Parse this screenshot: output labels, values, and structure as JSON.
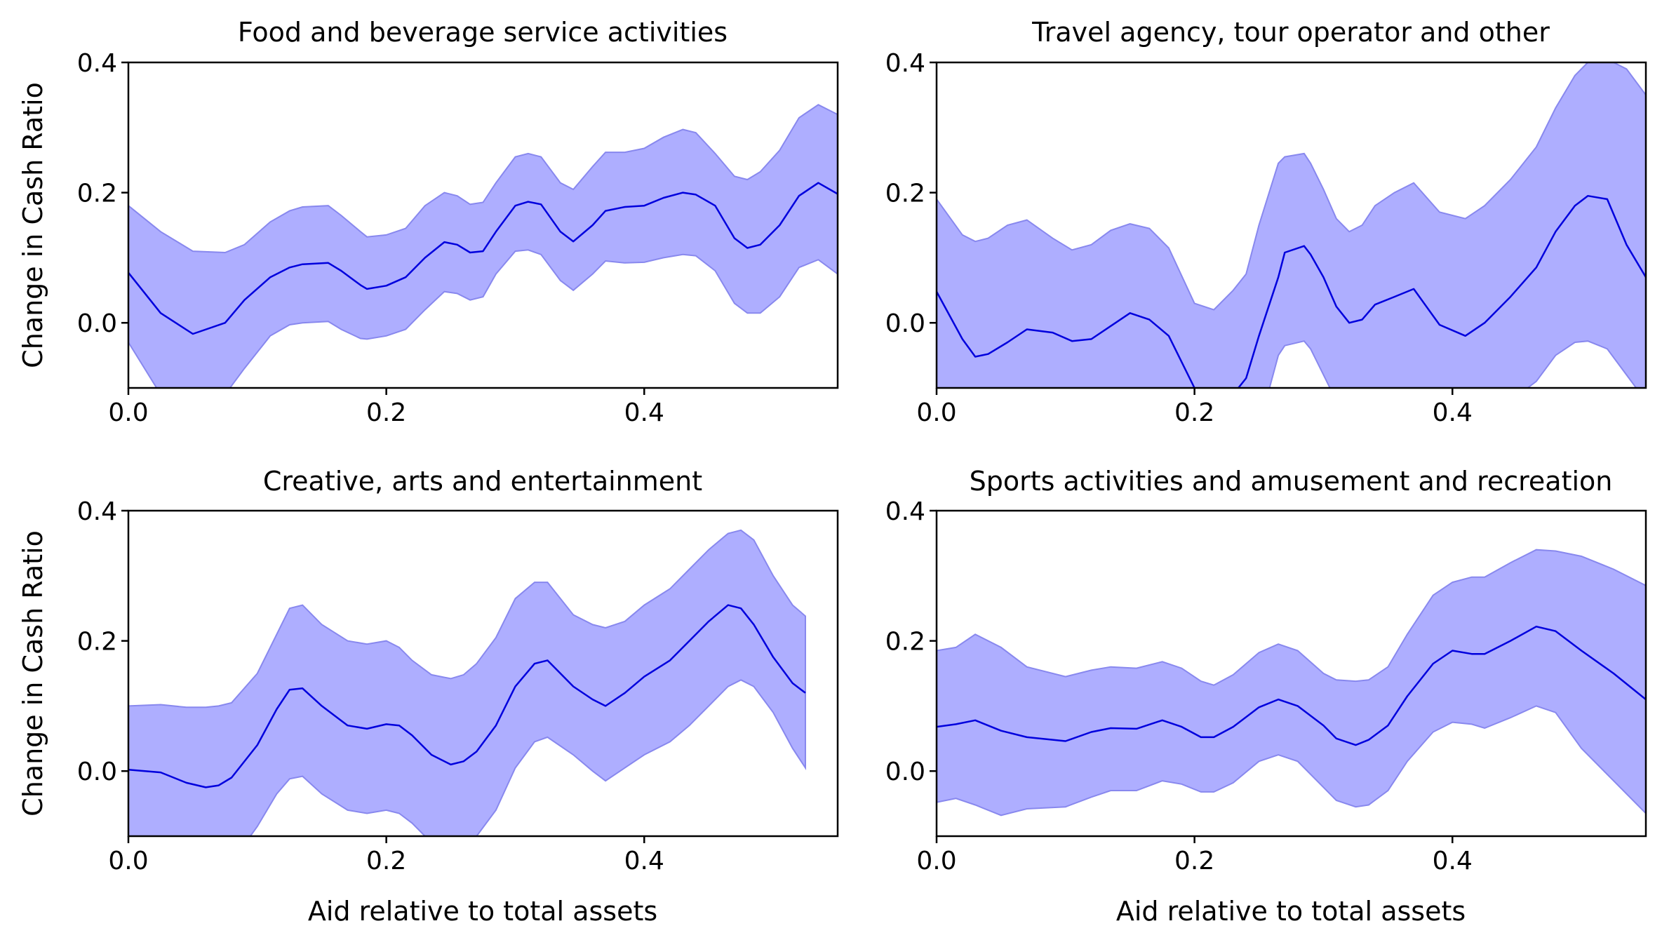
{
  "figure": {
    "ylabel": "Change in Cash Ratio",
    "xlabel": "Aid relative to total assets"
  },
  "chart_data": [
    {
      "type": "line",
      "title": "Food and beverage service activities",
      "xlabel": "",
      "ylabel": "Change in Cash Ratio",
      "xlim": [
        0.0,
        0.55
      ],
      "ylim": [
        -0.1,
        0.4
      ],
      "xticks": [
        "0.0",
        "0.2",
        "0.4"
      ],
      "yticks": [
        "0.0",
        "0.2",
        "0.4"
      ],
      "grid": false,
      "colors": {
        "line": "#0000dd",
        "band": "#aaaaff",
        "band_edge": "#8888ee"
      },
      "series": [
        {
          "x": [
            0.0,
            0.025,
            0.05,
            0.075,
            0.09,
            0.11,
            0.125,
            0.135,
            0.155,
            0.165,
            0.18,
            0.185,
            0.2,
            0.215,
            0.23,
            0.245,
            0.255,
            0.265,
            0.275,
            0.285,
            0.3,
            0.31,
            0.32,
            0.335,
            0.345,
            0.36,
            0.37,
            0.385,
            0.4,
            0.415,
            0.43,
            0.44,
            0.455,
            0.47,
            0.48,
            0.49,
            0.505,
            0.52,
            0.535,
            0.55
          ],
          "y": [
            0.077,
            0.015,
            -0.017,
            0.0,
            0.035,
            0.07,
            0.085,
            0.09,
            0.092,
            0.08,
            0.058,
            0.052,
            0.057,
            0.07,
            0.1,
            0.124,
            0.12,
            0.108,
            0.11,
            0.14,
            0.18,
            0.186,
            0.182,
            0.14,
            0.125,
            0.15,
            0.172,
            0.178,
            0.18,
            0.192,
            0.2,
            0.197,
            0.18,
            0.13,
            0.115,
            0.12,
            0.15,
            0.195,
            0.215,
            0.198
          ],
          "lower": [
            -0.03,
            -0.11,
            -0.13,
            -0.11,
            -0.07,
            -0.02,
            -0.003,
            0.0,
            0.002,
            -0.01,
            -0.024,
            -0.025,
            -0.02,
            -0.01,
            0.02,
            0.048,
            0.045,
            0.035,
            0.04,
            0.075,
            0.11,
            0.112,
            0.105,
            0.065,
            0.05,
            0.075,
            0.095,
            0.092,
            0.093,
            0.1,
            0.105,
            0.103,
            0.08,
            0.03,
            0.015,
            0.015,
            0.04,
            0.085,
            0.097,
            0.075
          ],
          "upper": [
            0.18,
            0.14,
            0.11,
            0.108,
            0.12,
            0.155,
            0.172,
            0.178,
            0.18,
            0.165,
            0.14,
            0.132,
            0.135,
            0.145,
            0.18,
            0.2,
            0.195,
            0.182,
            0.185,
            0.215,
            0.255,
            0.26,
            0.255,
            0.215,
            0.205,
            0.24,
            0.262,
            0.262,
            0.268,
            0.285,
            0.297,
            0.292,
            0.26,
            0.225,
            0.22,
            0.232,
            0.265,
            0.315,
            0.335,
            0.32
          ]
        }
      ]
    },
    {
      "type": "line",
      "title": "Travel agency, tour operator and other",
      "xlabel": "",
      "ylabel": "",
      "xlim": [
        0.0,
        0.55
      ],
      "ylim": [
        -0.1,
        0.4
      ],
      "xticks": [
        "0.0",
        "0.2",
        "0.4"
      ],
      "yticks": [
        "0.0",
        "0.2",
        "0.4"
      ],
      "grid": false,
      "colors": {
        "line": "#0000dd",
        "band": "#aaaaff",
        "band_edge": "#8888ee"
      },
      "series": [
        {
          "x": [
            0.0,
            0.02,
            0.03,
            0.04,
            0.055,
            0.07,
            0.09,
            0.105,
            0.12,
            0.135,
            0.15,
            0.165,
            0.18,
            0.2,
            0.215,
            0.23,
            0.24,
            0.25,
            0.265,
            0.27,
            0.285,
            0.29,
            0.3,
            0.31,
            0.32,
            0.33,
            0.34,
            0.355,
            0.37,
            0.39,
            0.41,
            0.425,
            0.445,
            0.465,
            0.48,
            0.495,
            0.505,
            0.52,
            0.535,
            0.55
          ],
          "y": [
            0.048,
            -0.025,
            -0.052,
            -0.048,
            -0.03,
            -0.01,
            -0.015,
            -0.028,
            -0.025,
            -0.005,
            0.015,
            0.005,
            -0.02,
            -0.1,
            -0.14,
            -0.11,
            -0.085,
            -0.02,
            0.07,
            0.108,
            0.118,
            0.105,
            0.07,
            0.025,
            0.0,
            0.005,
            0.028,
            0.04,
            0.052,
            -0.003,
            -0.02,
            0.0,
            0.04,
            0.085,
            0.14,
            0.18,
            0.195,
            0.19,
            0.12,
            0.07
          ],
          "lower": [
            -0.15,
            -0.2,
            -0.22,
            -0.22,
            -0.2,
            -0.18,
            -0.18,
            -0.19,
            -0.19,
            -0.17,
            -0.16,
            -0.17,
            -0.19,
            -0.25,
            -0.28,
            -0.25,
            -0.22,
            -0.16,
            -0.05,
            -0.035,
            -0.028,
            -0.04,
            -0.08,
            -0.12,
            -0.15,
            -0.145,
            -0.12,
            -0.11,
            -0.1,
            -0.15,
            -0.17,
            -0.15,
            -0.12,
            -0.09,
            -0.05,
            -0.03,
            -0.028,
            -0.04,
            -0.08,
            -0.12
          ],
          "upper": [
            0.19,
            0.135,
            0.125,
            0.13,
            0.15,
            0.158,
            0.13,
            0.112,
            0.12,
            0.142,
            0.152,
            0.145,
            0.115,
            0.03,
            0.02,
            0.05,
            0.075,
            0.15,
            0.245,
            0.255,
            0.26,
            0.245,
            0.205,
            0.16,
            0.14,
            0.15,
            0.18,
            0.2,
            0.215,
            0.17,
            0.16,
            0.18,
            0.22,
            0.27,
            0.33,
            0.38,
            0.4,
            0.405,
            0.39,
            0.35
          ]
        }
      ]
    },
    {
      "type": "line",
      "title": "Creative, arts and entertainment",
      "xlabel": "Aid relative to total assets",
      "ylabel": "Change in Cash Ratio",
      "xlim": [
        0.0,
        0.55
      ],
      "ylim": [
        -0.1,
        0.4
      ],
      "xticks": [
        "0.0",
        "0.2",
        "0.4"
      ],
      "yticks": [
        "0.0",
        "0.2",
        "0.4"
      ],
      "grid": false,
      "colors": {
        "line": "#0000dd",
        "band": "#aaaaff",
        "band_edge": "#8888ee"
      },
      "series": [
        {
          "x": [
            0.0,
            0.025,
            0.045,
            0.06,
            0.07,
            0.08,
            0.1,
            0.115,
            0.125,
            0.135,
            0.15,
            0.17,
            0.185,
            0.2,
            0.21,
            0.22,
            0.235,
            0.25,
            0.26,
            0.27,
            0.285,
            0.3,
            0.315,
            0.325,
            0.345,
            0.36,
            0.37,
            0.385,
            0.4,
            0.42,
            0.435,
            0.45,
            0.465,
            0.475,
            0.485,
            0.5,
            0.515,
            0.525
          ],
          "y": [
            0.002,
            -0.002,
            -0.018,
            -0.025,
            -0.022,
            -0.01,
            0.04,
            0.095,
            0.125,
            0.127,
            0.1,
            0.07,
            0.065,
            0.072,
            0.07,
            0.055,
            0.025,
            0.01,
            0.015,
            0.03,
            0.07,
            0.13,
            0.165,
            0.17,
            0.13,
            0.11,
            0.1,
            0.12,
            0.145,
            0.17,
            0.2,
            0.23,
            0.255,
            0.25,
            0.225,
            0.175,
            0.135,
            0.12
          ],
          "lower": [
            -0.1,
            -0.12,
            -0.14,
            -0.15,
            -0.15,
            -0.14,
            -0.085,
            -0.035,
            -0.012,
            -0.008,
            -0.035,
            -0.06,
            -0.065,
            -0.06,
            -0.065,
            -0.08,
            -0.11,
            -0.125,
            -0.12,
            -0.1,
            -0.06,
            0.005,
            0.045,
            0.052,
            0.025,
            0.0,
            -0.015,
            0.005,
            0.025,
            0.045,
            0.07,
            0.1,
            0.13,
            0.14,
            0.13,
            0.09,
            0.035,
            0.005
          ],
          "upper": [
            0.1,
            0.102,
            0.098,
            0.098,
            0.1,
            0.105,
            0.15,
            0.21,
            0.25,
            0.255,
            0.225,
            0.2,
            0.195,
            0.2,
            0.19,
            0.17,
            0.148,
            0.142,
            0.148,
            0.165,
            0.205,
            0.265,
            0.29,
            0.29,
            0.24,
            0.225,
            0.22,
            0.23,
            0.255,
            0.28,
            0.31,
            0.34,
            0.365,
            0.37,
            0.355,
            0.3,
            0.255,
            0.238
          ]
        }
      ]
    },
    {
      "type": "line",
      "title": "Sports activities and amusement and recreation",
      "xlabel": "Aid relative to total assets",
      "ylabel": "",
      "xlim": [
        0.0,
        0.55
      ],
      "ylim": [
        -0.1,
        0.4
      ],
      "xticks": [
        "0.0",
        "0.2",
        "0.4"
      ],
      "yticks": [
        "0.0",
        "0.2",
        "0.4"
      ],
      "grid": false,
      "colors": {
        "line": "#0000dd",
        "band": "#aaaaff",
        "band_edge": "#8888ee"
      },
      "series": [
        {
          "x": [
            0.0,
            0.015,
            0.03,
            0.05,
            0.07,
            0.1,
            0.12,
            0.135,
            0.155,
            0.175,
            0.19,
            0.205,
            0.215,
            0.23,
            0.25,
            0.265,
            0.28,
            0.3,
            0.31,
            0.325,
            0.335,
            0.35,
            0.365,
            0.385,
            0.4,
            0.415,
            0.425,
            0.445,
            0.465,
            0.48,
            0.5,
            0.525,
            0.55
          ],
          "y": [
            0.068,
            0.072,
            0.078,
            0.062,
            0.052,
            0.046,
            0.06,
            0.066,
            0.065,
            0.078,
            0.068,
            0.052,
            0.052,
            0.068,
            0.098,
            0.11,
            0.1,
            0.07,
            0.05,
            0.04,
            0.048,
            0.07,
            0.115,
            0.165,
            0.185,
            0.18,
            0.18,
            0.2,
            0.222,
            0.215,
            0.185,
            0.15,
            0.11
          ],
          "lower": [
            -0.048,
            -0.042,
            -0.052,
            -0.068,
            -0.058,
            -0.055,
            -0.04,
            -0.03,
            -0.03,
            -0.015,
            -0.02,
            -0.032,
            -0.032,
            -0.018,
            0.015,
            0.025,
            0.015,
            -0.025,
            -0.045,
            -0.055,
            -0.052,
            -0.03,
            0.015,
            0.06,
            0.075,
            0.072,
            0.066,
            0.082,
            0.1,
            0.09,
            0.035,
            -0.015,
            -0.065
          ],
          "upper": [
            0.185,
            0.19,
            0.21,
            0.19,
            0.16,
            0.145,
            0.155,
            0.16,
            0.158,
            0.168,
            0.158,
            0.138,
            0.132,
            0.148,
            0.182,
            0.195,
            0.185,
            0.15,
            0.14,
            0.138,
            0.14,
            0.16,
            0.21,
            0.27,
            0.29,
            0.298,
            0.298,
            0.32,
            0.34,
            0.338,
            0.33,
            0.31,
            0.285
          ]
        }
      ]
    }
  ]
}
